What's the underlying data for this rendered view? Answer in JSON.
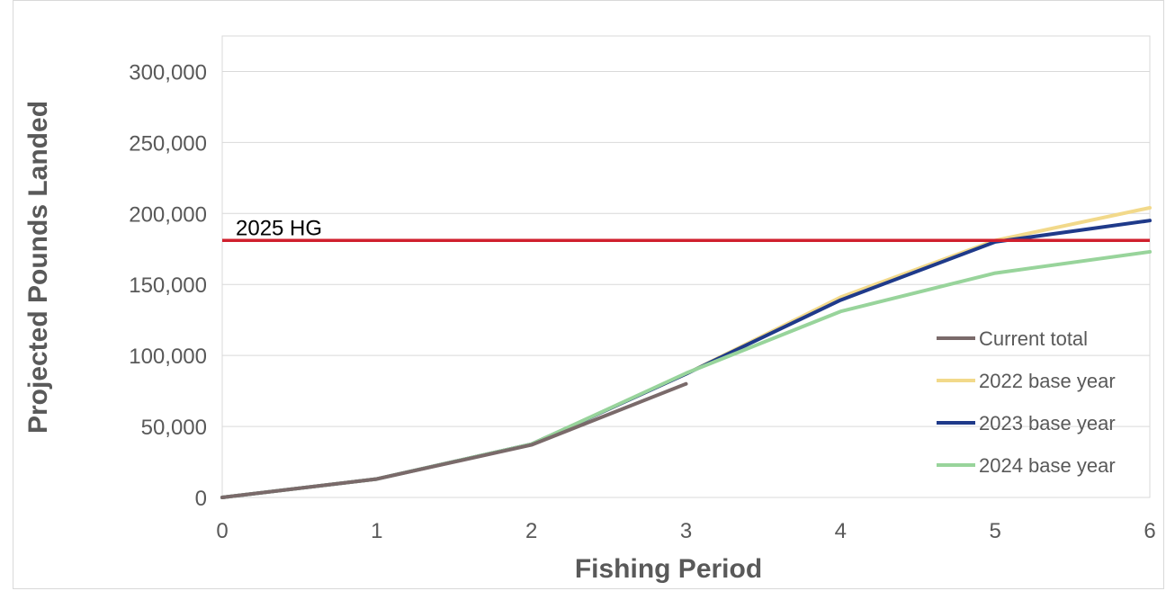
{
  "chart_data": {
    "type": "line",
    "title": "",
    "xlabel": "Fishing Period",
    "ylabel": "Projected Pounds Landed",
    "xlim": [
      0,
      6
    ],
    "ylim": [
      0,
      325000
    ],
    "x_ticks": [
      "0",
      "1",
      "2",
      "3",
      "4",
      "5",
      "6"
    ],
    "y_ticks": [
      {
        "value": 0,
        "label": "0"
      },
      {
        "value": 50000,
        "label": "50,000"
      },
      {
        "value": 100000,
        "label": "100,000"
      },
      {
        "value": 150000,
        "label": "150,000"
      },
      {
        "value": 200000,
        "label": "200,000"
      },
      {
        "value": 250000,
        "label": "250,000"
      },
      {
        "value": 300000,
        "label": "300,000"
      }
    ],
    "grid": true,
    "legend_position": "right",
    "reference_line": {
      "label": "2025 HG",
      "value": 181000,
      "color": "#d0202e"
    },
    "series": [
      {
        "name": "2022 base year",
        "color": "#f2d98a",
        "x": [
          0,
          1,
          2,
          3,
          4,
          5,
          6
        ],
        "values": [
          0,
          13000,
          37500,
          87000,
          141000,
          181000,
          204000
        ]
      },
      {
        "name": "2023 base year",
        "color": "#1f3a8a",
        "x": [
          0,
          1,
          2,
          3,
          4,
          5,
          6
        ],
        "values": [
          0,
          13000,
          37500,
          87000,
          139000,
          180000,
          195000
        ]
      },
      {
        "name": "2024 base year",
        "color": "#98d49b",
        "x": [
          0,
          1,
          2,
          3,
          4,
          5,
          6
        ],
        "values": [
          0,
          13000,
          37500,
          87500,
          131000,
          158000,
          173000
        ]
      },
      {
        "name": "Current total",
        "color": "#7a6a6a",
        "x": [
          0,
          1,
          2,
          3
        ],
        "values": [
          0,
          13000,
          37000,
          80000
        ]
      }
    ],
    "legend_order": [
      "Current total",
      "2022 base year",
      "2023 base year",
      "2024 base year"
    ]
  }
}
